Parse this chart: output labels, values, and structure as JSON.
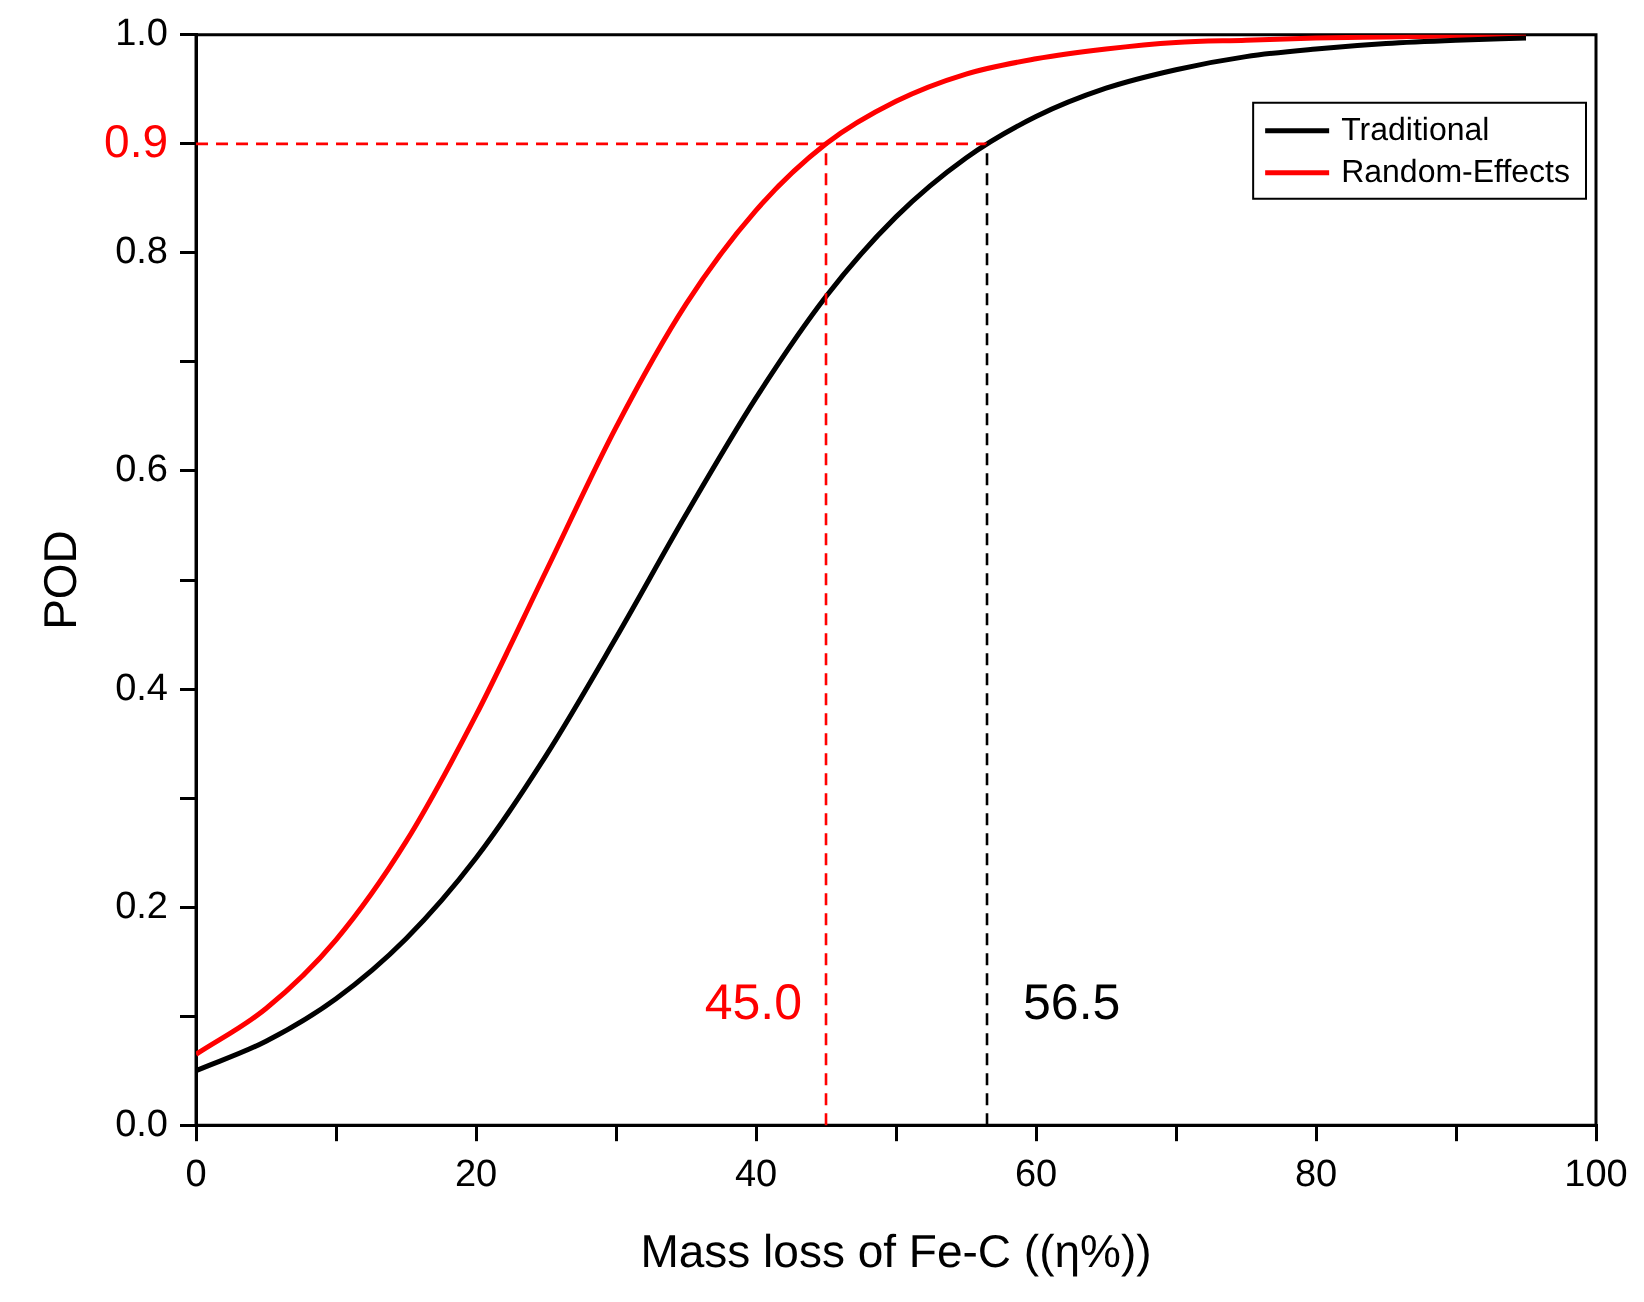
{
  "chart_data": {
    "type": "line",
    "xlabel": "Mass loss of Fe-C ((η%))",
    "ylabel": "POD",
    "x": [
      0,
      5,
      10,
      15,
      20,
      25,
      30,
      35,
      40,
      45,
      50,
      55,
      60,
      65,
      70,
      75,
      80,
      85,
      90,
      95
    ],
    "series": [
      {
        "name": "Traditional",
        "color": "#000000",
        "values": [
          0.05,
          0.077,
          0.116,
          0.171,
          0.245,
          0.339,
          0.447,
          0.56,
          0.667,
          0.76,
          0.833,
          0.887,
          0.925,
          0.951,
          0.968,
          0.98,
          0.987,
          0.992,
          0.995,
          0.997
        ]
      },
      {
        "name": "Random-Effects",
        "color": "#ff0000",
        "values": [
          0.065,
          0.107,
          0.17,
          0.26,
          0.376,
          0.508,
          0.64,
          0.753,
          0.839,
          0.9,
          0.939,
          0.964,
          0.978,
          0.987,
          0.993,
          0.995,
          0.997,
          0.998,
          0.999,
          0.999
        ]
      }
    ],
    "xlim": [
      0,
      100
    ],
    "xticks": [
      0,
      {
        "value": 10,
        "label": null
      },
      20,
      {
        "value": 30,
        "label": null
      },
      40,
      {
        "value": 50,
        "label": null
      },
      60,
      {
        "value": 70,
        "label": null
      },
      80,
      {
        "value": 90,
        "label": null
      },
      100
    ],
    "ylim": [
      0,
      1
    ],
    "yticks": [
      {
        "value": 0,
        "label": "0.0"
      },
      {
        "value": 0.1,
        "label": null
      },
      0.2,
      {
        "value": 0.3,
        "label": null
      },
      0.4,
      {
        "value": 0.5,
        "label": null
      },
      0.6,
      {
        "value": 0.7,
        "label": null
      },
      0.8,
      {
        "value": 0.9,
        "label": null
      },
      {
        "value": 1,
        "label": "1.0"
      }
    ],
    "ref_lines": [
      {
        "axis": "y",
        "value": 0.9,
        "label": "0.9",
        "color": "#ff0000",
        "line_style": "dashed"
      },
      {
        "axis": "x",
        "value": 45,
        "label": "45.0",
        "color": "#ff0000",
        "line_style": "dashed"
      },
      {
        "axis": "x",
        "value": 56.5,
        "label": "56.5",
        "color": "#000000",
        "line_style": "dashed"
      }
    ],
    "grid": false,
    "legend": "top right",
    "marker": "none",
    "line_style": "solid"
  }
}
